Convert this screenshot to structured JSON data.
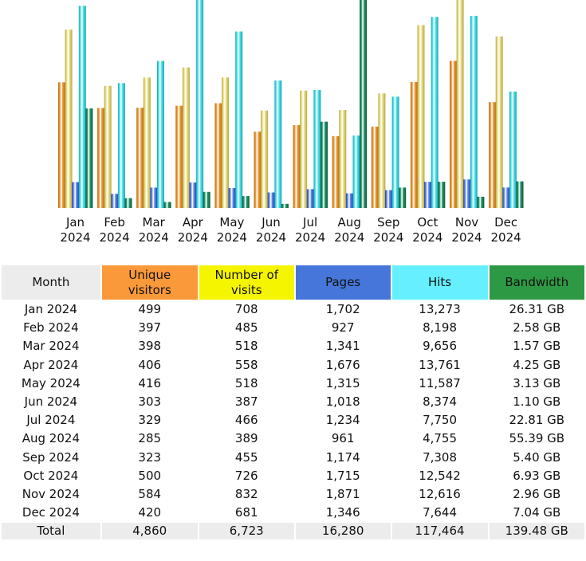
{
  "chart_data": {
    "type": "bar",
    "title": "",
    "xlabel": "",
    "ylabel": "",
    "grid": false,
    "legend": "none",
    "categories": [
      "Jan 2024",
      "Feb 2024",
      "Mar 2024",
      "Apr 2024",
      "May 2024",
      "Jun 2024",
      "Jul 2024",
      "Aug 2024",
      "Sep 2024",
      "Oct 2024",
      "Nov 2024",
      "Dec 2024"
    ],
    "category_labels": [
      [
        "Jan",
        "2024"
      ],
      [
        "Feb",
        "2024"
      ],
      [
        "Mar",
        "2024"
      ],
      [
        "Apr",
        "2024"
      ],
      [
        "May",
        "2024"
      ],
      [
        "Jun",
        "2024"
      ],
      [
        "Jul",
        "2024"
      ],
      [
        "Aug",
        "2024"
      ],
      [
        "Sep",
        "2024"
      ],
      [
        "Oct",
        "2024"
      ],
      [
        "Nov",
        "2024"
      ],
      [
        "Dec",
        "2024"
      ]
    ],
    "scale_note": "Unique visitors and visits share a scale; pages and hits share a scale; bandwidth has its own scale",
    "series": [
      {
        "name": "Unique visitors",
        "color": "#f0a040",
        "dark": "#b86a10",
        "scale_group": "visits",
        "values": [
          499,
          397,
          398,
          406,
          416,
          303,
          329,
          285,
          323,
          500,
          584,
          420
        ]
      },
      {
        "name": "Number of visits",
        "color": "#ece38a",
        "dark": "#b8a848",
        "scale_group": "visits",
        "values": [
          708,
          485,
          518,
          558,
          518,
          387,
          466,
          389,
          455,
          726,
          832,
          681
        ]
      },
      {
        "name": "Pages",
        "color": "#6a8ef0",
        "dark": "#1f3fb0",
        "scale_group": "hits",
        "values": [
          1702,
          927,
          1341,
          1676,
          1315,
          1018,
          1234,
          961,
          1174,
          1715,
          1871,
          1346
        ]
      },
      {
        "name": "Hits",
        "color": "#5ae6ee",
        "dark": "#14a8b4",
        "scale_group": "hits",
        "values": [
          13273,
          8198,
          9656,
          13761,
          11587,
          8374,
          7750,
          4755,
          7308,
          12542,
          12616,
          7644
        ]
      },
      {
        "name": "Bandwidth (GB)",
        "color": "#2a9a6e",
        "dark": "#0a5a3a",
        "scale_group": "bandwidth",
        "values": [
          26.31,
          2.58,
          1.57,
          4.25,
          3.13,
          1.1,
          22.81,
          55.39,
          5.4,
          6.93,
          2.96,
          7.04
        ]
      }
    ]
  },
  "table": {
    "headers": {
      "month": "Month",
      "unique_visitors": [
        "Unique",
        "visitors"
      ],
      "visits": [
        "Number of",
        "visits"
      ],
      "pages": "Pages",
      "hits": "Hits",
      "bandwidth": "Bandwidth"
    },
    "header_colors": {
      "month": "#ececec",
      "unique_visitors": "#f9993a",
      "visits": "#f5f500",
      "pages": "#4676d9",
      "hits": "#66f0ff",
      "bandwidth": "#2e9944"
    },
    "rows": [
      {
        "month": "Jan 2024",
        "unique": "499",
        "visits": "708",
        "pages": "1,702",
        "hits": "13,273",
        "bandwidth": "26.31 GB"
      },
      {
        "month": "Feb 2024",
        "unique": "397",
        "visits": "485",
        "pages": "927",
        "hits": "8,198",
        "bandwidth": "2.58 GB"
      },
      {
        "month": "Mar 2024",
        "unique": "398",
        "visits": "518",
        "pages": "1,341",
        "hits": "9,656",
        "bandwidth": "1.57 GB"
      },
      {
        "month": "Apr 2024",
        "unique": "406",
        "visits": "558",
        "pages": "1,676",
        "hits": "13,761",
        "bandwidth": "4.25 GB"
      },
      {
        "month": "May 2024",
        "unique": "416",
        "visits": "518",
        "pages": "1,315",
        "hits": "11,587",
        "bandwidth": "3.13 GB"
      },
      {
        "month": "Jun 2024",
        "unique": "303",
        "visits": "387",
        "pages": "1,018",
        "hits": "8,374",
        "bandwidth": "1.10 GB"
      },
      {
        "month": "Jul 2024",
        "unique": "329",
        "visits": "466",
        "pages": "1,234",
        "hits": "7,750",
        "bandwidth": "22.81 GB"
      },
      {
        "month": "Aug 2024",
        "unique": "285",
        "visits": "389",
        "pages": "961",
        "hits": "4,755",
        "bandwidth": "55.39 GB"
      },
      {
        "month": "Sep 2024",
        "unique": "323",
        "visits": "455",
        "pages": "1,174",
        "hits": "7,308",
        "bandwidth": "5.40 GB"
      },
      {
        "month": "Oct 2024",
        "unique": "500",
        "visits": "726",
        "pages": "1,715",
        "hits": "12,542",
        "bandwidth": "6.93 GB"
      },
      {
        "month": "Nov 2024",
        "unique": "584",
        "visits": "832",
        "pages": "1,871",
        "hits": "12,616",
        "bandwidth": "2.96 GB"
      },
      {
        "month": "Dec 2024",
        "unique": "420",
        "visits": "681",
        "pages": "1,346",
        "hits": "7,644",
        "bandwidth": "7.04 GB"
      }
    ],
    "total": {
      "month": "Total",
      "unique": "4,860",
      "visits": "6,723",
      "pages": "16,280",
      "hits": "117,464",
      "bandwidth": "139.48 GB"
    }
  }
}
